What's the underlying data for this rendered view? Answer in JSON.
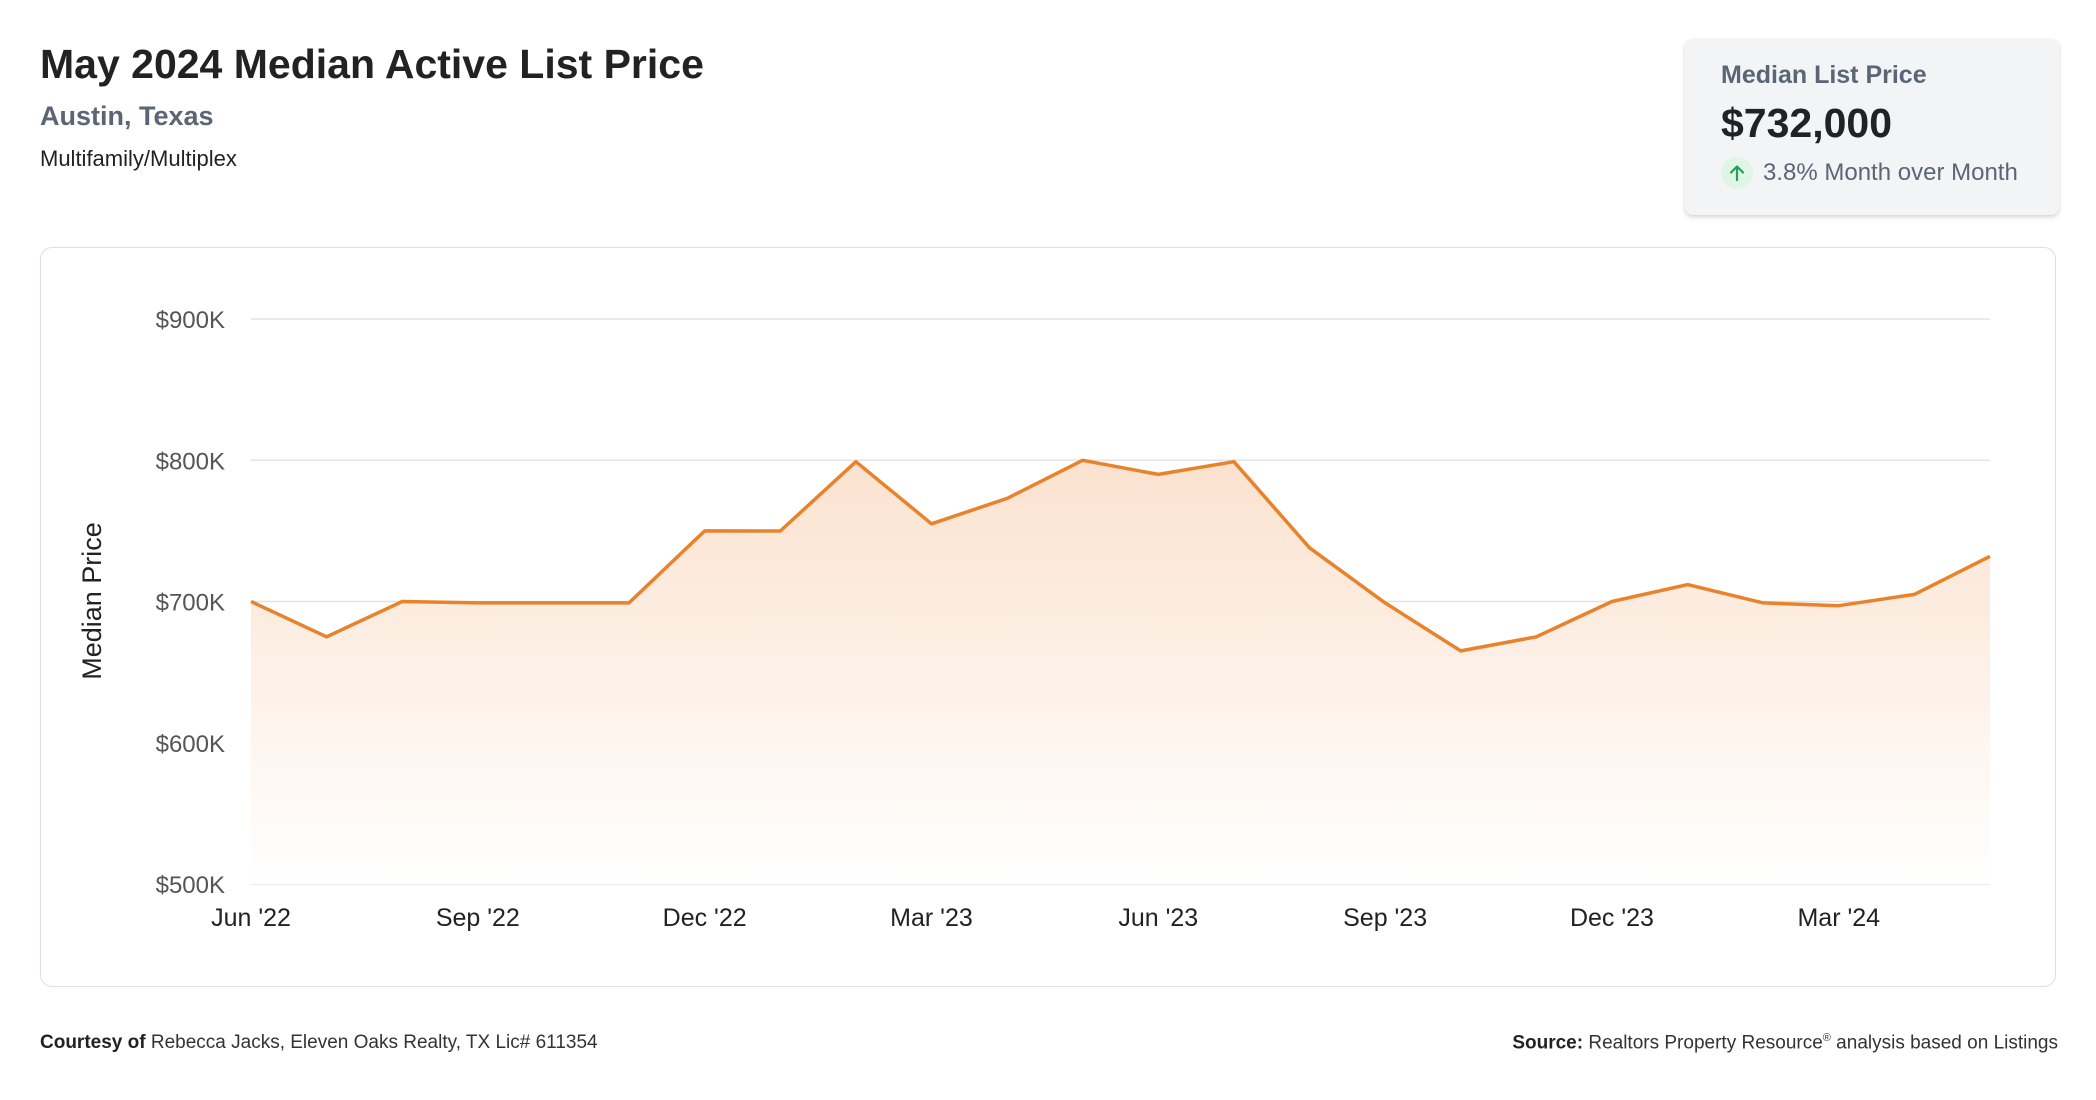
{
  "header": {
    "title": "May 2024 Median Active List Price",
    "location": "Austin, Texas",
    "property_type": "Multifamily/Multiplex"
  },
  "stat_card": {
    "label": "Median List Price",
    "value": "$732,000",
    "change_text": "3.8% Month over Month",
    "change_icon": "arrow-up-icon",
    "change_color": "#22a05a"
  },
  "footer": {
    "courtesy_label": "Courtesy of",
    "courtesy_text": "Rebecca Jacks, Eleven Oaks Realty, TX Lic# 611354",
    "source_label": "Source:",
    "source_text_before": "Realtors Property Resource",
    "source_mark": "®",
    "source_text_after": " analysis based on Listings"
  },
  "colors": {
    "line": "#e8832b",
    "fill_top": "#fbe2cf",
    "fill_bottom": "#ffffff",
    "grid": "#e3e3e3",
    "axis_text": "#555555"
  },
  "chart_data": {
    "type": "area",
    "ylabel": "Median Price",
    "xlabel": "",
    "ylim": [
      500000,
      900000
    ],
    "yticks": [
      500000,
      600000,
      700000,
      800000,
      900000
    ],
    "ytick_labels": [
      "$500K",
      "$600K",
      "$700K",
      "$800K",
      "$900K"
    ],
    "xtick_indices": [
      0,
      3,
      6,
      9,
      12,
      15,
      18,
      21
    ],
    "xtick_labels": [
      "Jun '22",
      "Sep '22",
      "Dec '22",
      "Mar '23",
      "Jun '23",
      "Sep '23",
      "Dec '23",
      "Mar '24"
    ],
    "x": [
      "Jun '22",
      "Jul '22",
      "Aug '22",
      "Sep '22",
      "Oct '22",
      "Nov '22",
      "Dec '22",
      "Jan '23",
      "Feb '23",
      "Mar '23",
      "Apr '23",
      "May '23",
      "Jun '23",
      "Jul '23",
      "Aug '23",
      "Sep '23",
      "Oct '23",
      "Nov '23",
      "Dec '23",
      "Jan '24",
      "Feb '24",
      "Mar '24",
      "Apr '24",
      "May '24"
    ],
    "values": [
      700000,
      675000,
      700000,
      699000,
      699000,
      699000,
      750000,
      749900,
      799000,
      755000,
      773000,
      800000,
      790000,
      799000,
      738000,
      699000,
      665000,
      675000,
      700000,
      712000,
      699000,
      697000,
      705000,
      732000
    ],
    "grid": true,
    "legend": "none"
  }
}
